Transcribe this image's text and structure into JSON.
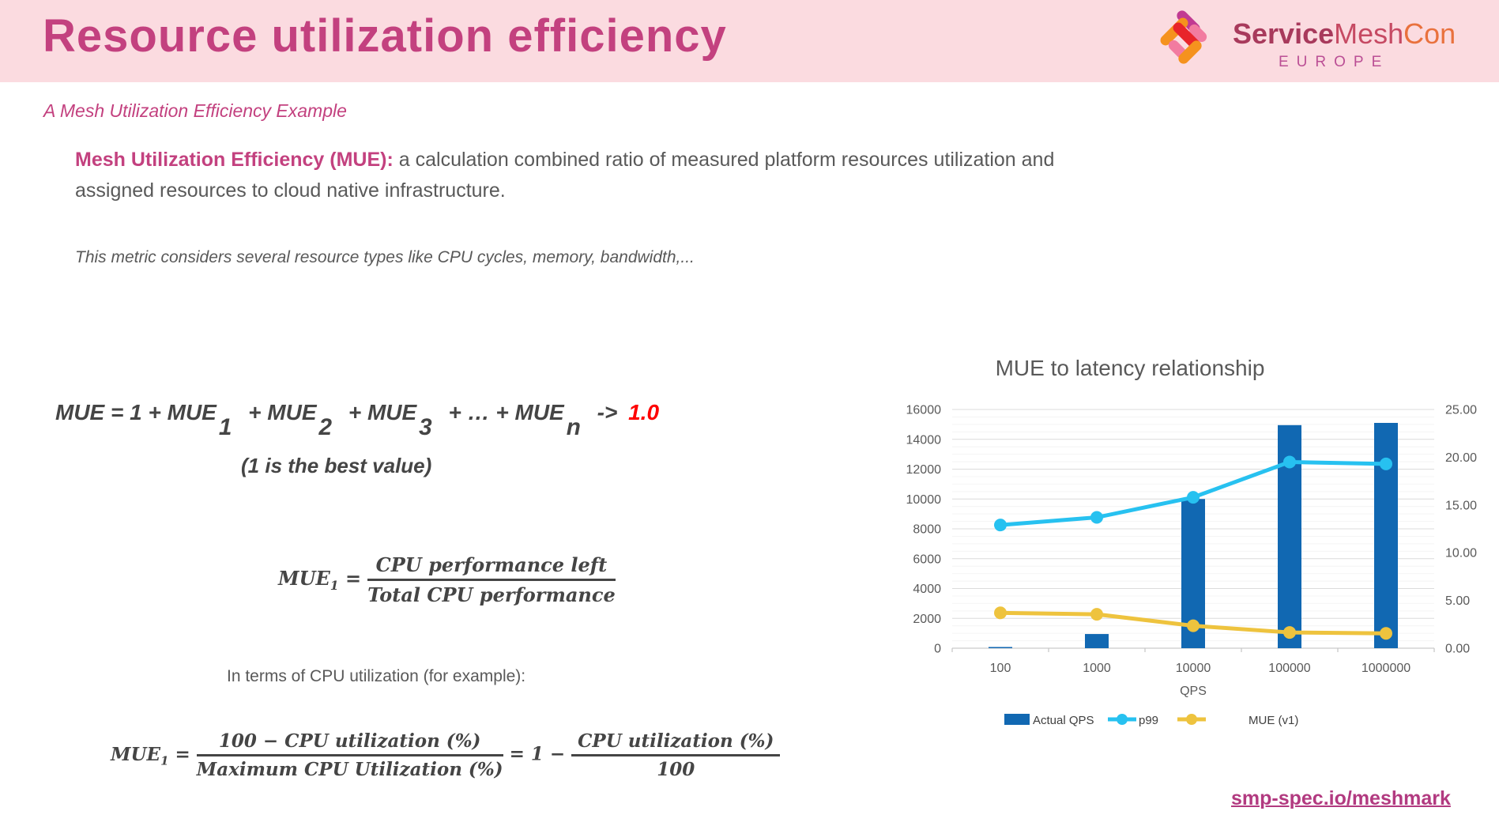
{
  "slide": {
    "title": "Resource utilization efficiency"
  },
  "logo": {
    "brand_service": "Service",
    "brand_mesh": "Mesh",
    "brand_con": "Con",
    "region": "EUROPE"
  },
  "subtitle": "A Mesh Utilization Efficiency Example",
  "definition": {
    "lead": "Mesh Utilization Efficiency (MUE):",
    "body": " a calculation combined ratio of measured platform resources utilization and assigned resources to cloud native infrastructure."
  },
  "note": "This metric considers several resource types like CPU cycles, memory, bandwidth,...",
  "mue_sum_formula": {
    "lhs": "MUE",
    "rhs_start": "= 1 + MUE",
    "sub1": "1",
    "plus_mue2": "+ MUE",
    "sub2": "2",
    "plus_mue3": "+ MUE",
    "sub3": "3",
    "plus_dots_mue": "+ … + MUE",
    "subn": "n",
    "arrow": "->",
    "limit": "1.0",
    "caption": "(1 is the best value)"
  },
  "mue1_formula": {
    "lhs": "MUE",
    "sub": "1",
    "equals": "=",
    "numerator": "CPU performance left",
    "denominator": "Total CPU performance"
  },
  "cpu_line": "In terms of CPU utilization (for example):",
  "cpu_formula": {
    "lhs": "MUE",
    "sub": "1",
    "equals": "=",
    "frac1_num": "100 − CPU utilization (%)",
    "frac1_den": "Maximum CPU Utilization (%)",
    "middle": "= 1 −",
    "frac2_num": "CPU utilization (%)",
    "frac2_den": "100"
  },
  "footer_link": "smp-spec.io/meshmark",
  "colors": {
    "accent_pink": "#c3417f",
    "header_band": "#fbdbe0",
    "body_gray": "#595959",
    "formula_dark": "#454545",
    "highlight_red": "#fe0000",
    "link_pink": "#b23a80",
    "bar_blue": "#1168b2",
    "line_cyan": "#27c1f0",
    "line_yellow": "#eec33e"
  },
  "chart_data": {
    "type": "bar",
    "title": "MUE to latency relationship",
    "categories": [
      "100",
      "1000",
      "10000",
      "100000",
      "1000000"
    ],
    "xlabel": "QPS",
    "left_axis": {
      "min": 0,
      "max": 16000,
      "step": 2000,
      "minor_step": 500
    },
    "right_axis": {
      "min": 0,
      "max": 25,
      "step": 5,
      "decimals": 2
    },
    "series": [
      {
        "name": "Actual QPS",
        "type": "bar",
        "axis": "left",
        "color": "#1168b2",
        "values": [
          80,
          950,
          10000,
          14950,
          15100
        ]
      },
      {
        "name": "p99",
        "type": "line",
        "axis": "right",
        "color": "#27c1f0",
        "values": [
          12.9,
          13.7,
          15.8,
          19.5,
          19.3
        ]
      },
      {
        "name": "MUE (v1)",
        "type": "line",
        "axis": "right",
        "color": "#eec33e",
        "values": [
          3.7,
          3.55,
          2.35,
          1.65,
          1.55
        ]
      }
    ],
    "legend_position": "bottom",
    "grid": true
  }
}
